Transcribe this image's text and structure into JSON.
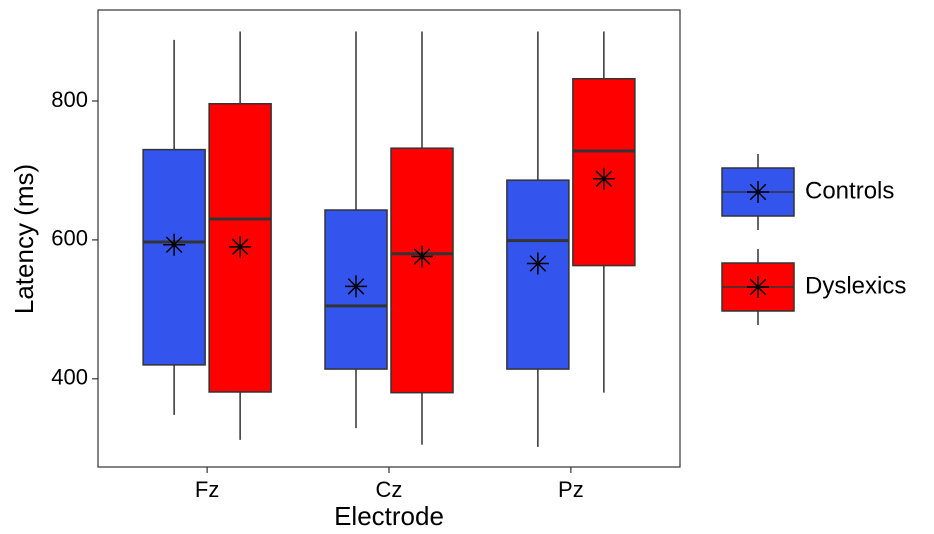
{
  "chart_data": {
    "type": "box",
    "x_label": "Electrode",
    "y_label": "Latency (ms)",
    "categories": [
      "Fz",
      "Cz",
      "Pz"
    ],
    "ylim": [
      273,
      931
    ],
    "yticks": [
      400,
      600,
      800
    ],
    "grid": false,
    "legend": "right",
    "series": [
      {
        "name": "Controls",
        "color": "#3355ee",
        "low": [
          348,
          329,
          302
        ],
        "q1": [
          420,
          414,
          414
        ],
        "median": [
          597,
          505,
          599
        ],
        "q3": [
          730,
          643,
          686
        ],
        "high": [
          888,
          900,
          900
        ],
        "mean": [
          593,
          533,
          566
        ]
      },
      {
        "name": "Dyslexics",
        "color": "#ff0000",
        "low": [
          312,
          305,
          380
        ],
        "q1": [
          381,
          380,
          563
        ],
        "median": [
          630,
          580,
          728
        ],
        "q3": [
          796,
          732,
          832
        ],
        "high": [
          900,
          900,
          900
        ],
        "mean": [
          590,
          576,
          688
        ]
      }
    ]
  }
}
